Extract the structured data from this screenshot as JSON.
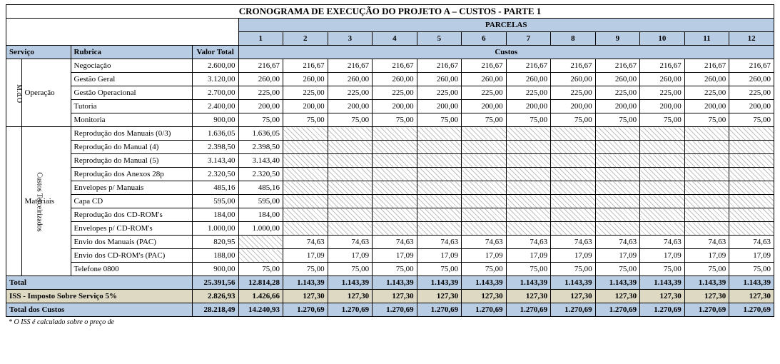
{
  "title": "CRONOGRAMA DE EXECUÇÃO DO PROJETO A – CUSTOS - PARTE 1",
  "parcelas_label": "PARCELAS",
  "headers": {
    "servico": "Serviço",
    "rubrica": "Rubrica",
    "valor_total": "Valor Total",
    "custos": "Custos"
  },
  "parcelas": [
    "1",
    "2",
    "3",
    "4",
    "5",
    "6",
    "7",
    "8",
    "9",
    "10",
    "11",
    "12"
  ],
  "side_labels": {
    "mdo": "M.d.O",
    "custos_terc": "Custos Terceirizados"
  },
  "sections": [
    {
      "servico": "Operação",
      "rows": [
        {
          "rubrica": "Negociação",
          "vt": "2.600,00",
          "cells": [
            "216,67",
            "216,67",
            "216,67",
            "216,67",
            "216,67",
            "216,67",
            "216,67",
            "216,67",
            "216,67",
            "216,67",
            "216,67",
            "216,67"
          ]
        },
        {
          "rubrica": "Gestão Geral",
          "vt": "3.120,00",
          "cells": [
            "260,00",
            "260,00",
            "260,00",
            "260,00",
            "260,00",
            "260,00",
            "260,00",
            "260,00",
            "260,00",
            "260,00",
            "260,00",
            "260,00"
          ]
        },
        {
          "rubrica": "Gestão Operacional",
          "vt": "2.700,00",
          "cells": [
            "225,00",
            "225,00",
            "225,00",
            "225,00",
            "225,00",
            "225,00",
            "225,00",
            "225,00",
            "225,00",
            "225,00",
            "225,00",
            "225,00"
          ]
        },
        {
          "rubrica": "Tutoria",
          "vt": "2.400,00",
          "cells": [
            "200,00",
            "200,00",
            "200,00",
            "200,00",
            "200,00",
            "200,00",
            "200,00",
            "200,00",
            "200,00",
            "200,00",
            "200,00",
            "200,00"
          ]
        },
        {
          "rubrica": "Monitoria",
          "vt": "900,00",
          "cells": [
            "75,00",
            "75,00",
            "75,00",
            "75,00",
            "75,00",
            "75,00",
            "75,00",
            "75,00",
            "75,00",
            "75,00",
            "75,00",
            "75,00"
          ]
        }
      ]
    },
    {
      "servico": "Materiais",
      "rows": [
        {
          "rubrica": "Reprodução dos Manuais (0/3)",
          "vt": "1.636,05",
          "cells": [
            "1.636,05",
            null,
            null,
            null,
            null,
            null,
            null,
            null,
            null,
            null,
            null,
            null
          ]
        },
        {
          "rubrica": "Reprodução do Manual (4)",
          "vt": "2.398,50",
          "cells": [
            "2.398,50",
            null,
            null,
            null,
            null,
            null,
            null,
            null,
            null,
            null,
            null,
            null
          ]
        },
        {
          "rubrica": "Reprodução do Manual (5)",
          "vt": "3.143,40",
          "cells": [
            "3.143,40",
            null,
            null,
            null,
            null,
            null,
            null,
            null,
            null,
            null,
            null,
            null
          ]
        },
        {
          "rubrica": "Reprodução dos Anexos 28p",
          "vt": "2.320,50",
          "cells": [
            "2.320,50",
            null,
            null,
            null,
            null,
            null,
            null,
            null,
            null,
            null,
            null,
            null
          ]
        },
        {
          "rubrica": "Envelopes p/ Manuais",
          "vt": "485,16",
          "cells": [
            "485,16",
            null,
            null,
            null,
            null,
            null,
            null,
            null,
            null,
            null,
            null,
            null
          ]
        },
        {
          "rubrica": "Capa CD",
          "vt": "595,00",
          "cells": [
            "595,00",
            null,
            null,
            null,
            null,
            null,
            null,
            null,
            null,
            null,
            null,
            null
          ]
        },
        {
          "rubrica": "Reprodução dos CD-ROM's",
          "vt": "184,00",
          "cells": [
            "184,00",
            null,
            null,
            null,
            null,
            null,
            null,
            null,
            null,
            null,
            null,
            null
          ]
        },
        {
          "rubrica": "Envelopes p/ CD-ROM's",
          "vt": "1.000,00",
          "cells": [
            "1.000,00",
            null,
            null,
            null,
            null,
            null,
            null,
            null,
            null,
            null,
            null,
            null
          ]
        },
        {
          "rubrica": "Envio dos Manuais (PAC)",
          "vt": "820,95",
          "cells": [
            null,
            "74,63",
            "74,63",
            "74,63",
            "74,63",
            "74,63",
            "74,63",
            "74,63",
            "74,63",
            "74,63",
            "74,63",
            "74,63"
          ]
        },
        {
          "rubrica": "Envio dos CD-ROM's (PAC)",
          "vt": "188,00",
          "cells": [
            null,
            "17,09",
            "17,09",
            "17,09",
            "17,09",
            "17,09",
            "17,09",
            "17,09",
            "17,09",
            "17,09",
            "17,09",
            "17,09"
          ]
        },
        {
          "rubrica": "Telefone 0800",
          "vt": "900,00",
          "cells": [
            "75,00",
            "75,00",
            "75,00",
            "75,00",
            "75,00",
            "75,00",
            "75,00",
            "75,00",
            "75,00",
            "75,00",
            "75,00",
            "75,00"
          ]
        }
      ]
    }
  ],
  "totals": {
    "total": {
      "label": "Total",
      "vt": "25.391,56",
      "cells": [
        "12.814,28",
        "1.143,39",
        "1.143,39",
        "1.143,39",
        "1.143,39",
        "1.143,39",
        "1.143,39",
        "1.143,39",
        "1.143,39",
        "1.143,39",
        "1.143,39",
        "1.143,39"
      ]
    },
    "iss": {
      "label": "ISS - Imposto Sobre Serviço 5%",
      "vt": "2.826,93",
      "cells": [
        "1.426,66",
        "127,30",
        "127,30",
        "127,30",
        "127,30",
        "127,30",
        "127,30",
        "127,30",
        "127,30",
        "127,30",
        "127,30",
        "127,30"
      ]
    },
    "grand": {
      "label": "Total dos Custos",
      "vt": "28.218,49",
      "cells": [
        "14.240,93",
        "1.270,69",
        "1.270,69",
        "1.270,69",
        "1.270,69",
        "1.270,69",
        "1.270,69",
        "1.270,69",
        "1.270,69",
        "1.270,69",
        "1.270,69",
        "1.270,69"
      ]
    }
  },
  "footnote": "* O ISS é calculado sobre o preço de",
  "colors": {
    "header_bg": "#b8cce4",
    "iss_bg": "#ddd9c3",
    "hatch": "#bfbfbf",
    "border": "#000"
  }
}
